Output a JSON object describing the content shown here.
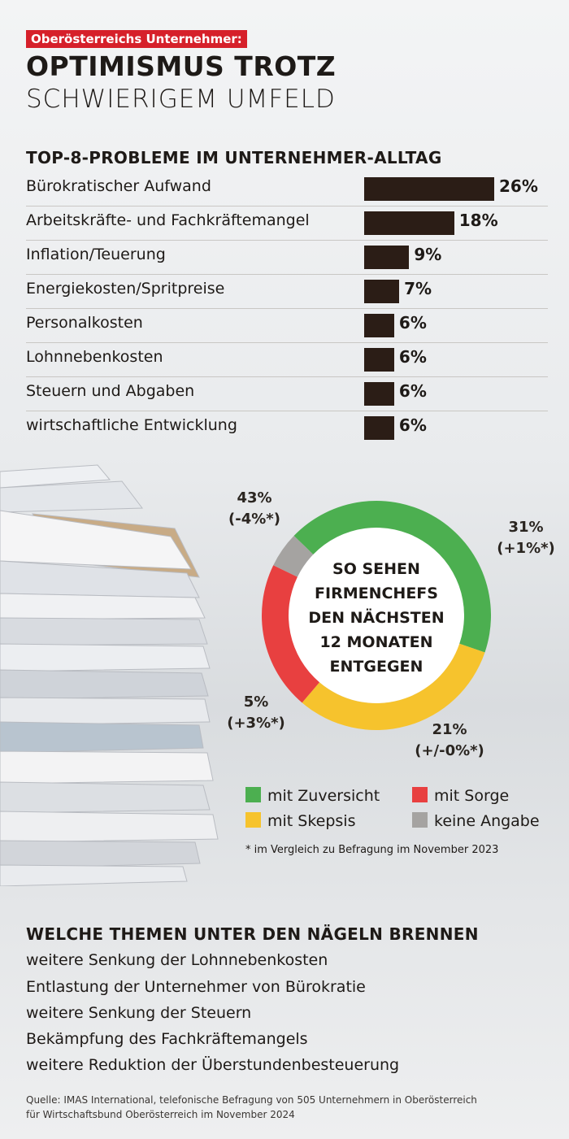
{
  "header": {
    "kicker": "Oberösterreichs Unternehmer:",
    "title_line1": "OPTIMISMUS TROTZ",
    "title_line2": "SCHWIERIGEM UMFELD"
  },
  "colors": {
    "kicker_bg": "#d6202a",
    "bar": "#2b1d16",
    "zuversicht": "#4caf50",
    "skepsis": "#f6c32d",
    "sorge": "#e84040",
    "keine_angabe": "#a5a3a1"
  },
  "chart_data": [
    {
      "type": "bar",
      "orientation": "horizontal",
      "title": "TOP-8-PROBLEME IM UNTERNEHMER-ALLTAG",
      "categories": [
        "Bürokratischer Aufwand",
        "Arbeitskräfte- und Fachkräftemangel",
        "Inflation/Teuerung",
        "Energiekosten/Spritpreise",
        "Personalkosten",
        "Lohnnebenkosten",
        "Steuern und Abgaben",
        "wirtschaftliche Entwicklung"
      ],
      "values": [
        26,
        18,
        9,
        7,
        6,
        6,
        6,
        6
      ],
      "value_labels": [
        "26%",
        "18%",
        "9%",
        "7%",
        "6%",
        "6%",
        "6%",
        "6%"
      ],
      "unit": "%"
    },
    {
      "type": "pie",
      "variant": "donut",
      "center_text": [
        "SO SEHEN",
        "FIRMENCHEFS",
        "DEN NÄCHSTEN",
        "12 MONATEN",
        "ENTGEGEN"
      ],
      "slices": [
        {
          "name": "mit Zuversicht",
          "value": 43,
          "label": "43%",
          "change": "(-4%*)",
          "color": "#4caf50"
        },
        {
          "name": "mit Skepsis",
          "value": 31,
          "label": "31%",
          "change": "(+1%*)",
          "color": "#f6c32d"
        },
        {
          "name": "mit Sorge",
          "value": 21,
          "label": "21%",
          "change": "(+/-0%*)",
          "color": "#e84040"
        },
        {
          "name": "keine Angabe",
          "value": 5,
          "label": "5%",
          "change": "(+3%*)",
          "color": "#a5a3a1"
        }
      ],
      "legend": [
        "mit Zuversicht",
        "mit Sorge",
        "mit Skepsis",
        "keine Angabe"
      ],
      "footnote": "* im Vergleich zu Befragung im November 2023"
    }
  ],
  "themes": {
    "title": "WELCHE THEMEN UNTER DEN NÄGELN BRENNEN",
    "items": [
      "weitere Senkung der Lohnnebenkosten",
      "Entlastung der Unternehmer von Bürokratie",
      "weitere Senkung der Steuern",
      "Bekämpfung des Fachkräftemangels",
      "weitere Reduktion der Überstundenbesteuerung"
    ]
  },
  "source": {
    "label": "Quelle:",
    "line1": "IMAS International, telefonische Befragung von 505 Unternehmern in Oberösterreich",
    "line2": "für Wirtschaftsbund Oberösterreich im November 2024"
  }
}
